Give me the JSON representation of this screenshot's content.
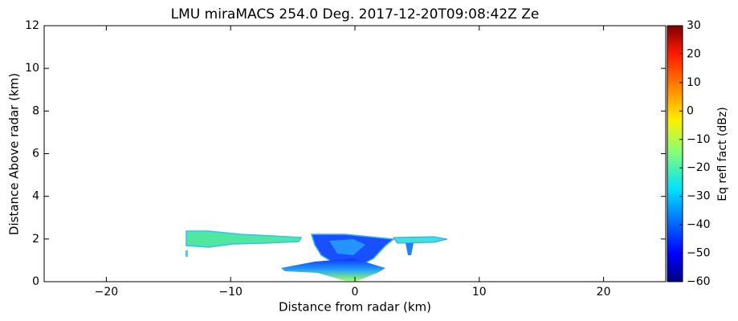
{
  "chart_data": {
    "type": "rhi",
    "title": "LMU miraMACS 254.0 Deg. 2017-12-20T09:08:42Z  Ze",
    "x_label": "Distance from radar (km)",
    "y_label": "Distance Above radar  (km)",
    "xlim": [
      -25,
      25
    ],
    "xticks": [
      {
        "value": -20,
        "label": "−20"
      },
      {
        "value": -10,
        "label": "−10"
      },
      0,
      10,
      20
    ],
    "ylim": [
      0,
      12
    ],
    "yticks": [
      0,
      2,
      4,
      6,
      8,
      10,
      12
    ],
    "colorbar": {
      "label": "Eq refl fact (dBz)",
      "lim": [
        -60,
        30
      ],
      "ticks": [
        {
          "value": -60,
          "label": "−60"
        },
        {
          "value": -50,
          "label": "−50"
        },
        {
          "value": -40,
          "label": "−40"
        },
        {
          "value": -30,
          "label": "−30"
        },
        {
          "value": -20,
          "label": "−20"
        },
        {
          "value": -10,
          "label": "−10"
        },
        0,
        10,
        20,
        30
      ],
      "colormap": "jet"
    }
  }
}
